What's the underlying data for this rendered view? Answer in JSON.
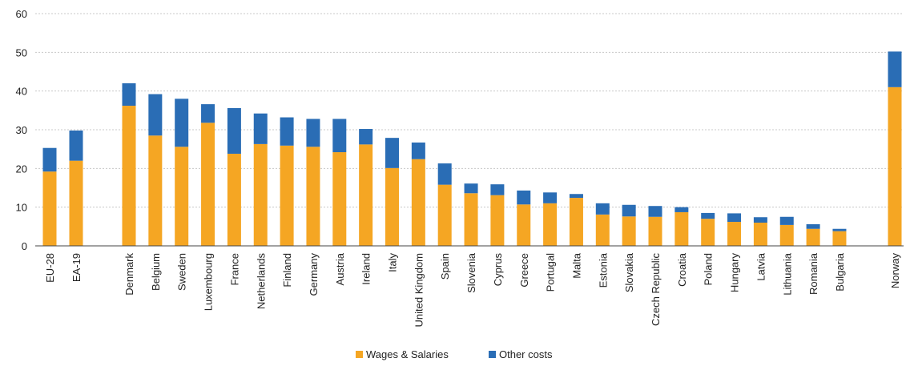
{
  "chart_data": {
    "type": "bar",
    "stacked": true,
    "title": "",
    "xlabel": "",
    "ylabel": "",
    "ylim": [
      0,
      60
    ],
    "yticks": [
      0,
      10,
      20,
      30,
      40,
      50,
      60
    ],
    "grid": true,
    "legend_position": "bottom",
    "colors": {
      "wages": "#f5a623",
      "other": "#2a6db5"
    },
    "categories": [
      "EU-28",
      "EA-19",
      "Denmark",
      "Belgium",
      "Sweden",
      "Luxembourg",
      "France",
      "Netherlands",
      "Finland",
      "Germany",
      "Austria",
      "Ireland",
      "Italy",
      "United Kingdom",
      "Spain",
      "Slovenia",
      "Cyprus",
      "Greece",
      "Portugal",
      "Malta",
      "Estonia",
      "Slovakia",
      "Czech Republic",
      "Croatia",
      "Poland",
      "Hungary",
      "Latvia",
      "Lithuania",
      "Romania",
      "Bulgaria",
      "Norway"
    ],
    "series": [
      {
        "name": "Wages & Salaries",
        "values": [
          19.2,
          22.0,
          36.2,
          28.5,
          25.6,
          31.8,
          23.8,
          26.3,
          25.9,
          25.6,
          24.2,
          26.2,
          20.1,
          22.4,
          15.8,
          13.6,
          13.1,
          10.7,
          11.0,
          12.4,
          8.1,
          7.6,
          7.5,
          8.7,
          7.0,
          6.2,
          6.0,
          5.4,
          4.4,
          3.8,
          41.0
        ]
      },
      {
        "name": "Other costs",
        "values": [
          6.1,
          7.8,
          5.8,
          10.7,
          12.4,
          4.8,
          11.8,
          7.9,
          7.3,
          7.2,
          8.6,
          4.0,
          7.8,
          4.3,
          5.5,
          2.5,
          2.8,
          3.6,
          2.8,
          1.0,
          2.9,
          3.0,
          2.8,
          1.3,
          1.5,
          2.2,
          1.4,
          2.1,
          1.2,
          0.6,
          9.2
        ]
      }
    ]
  }
}
